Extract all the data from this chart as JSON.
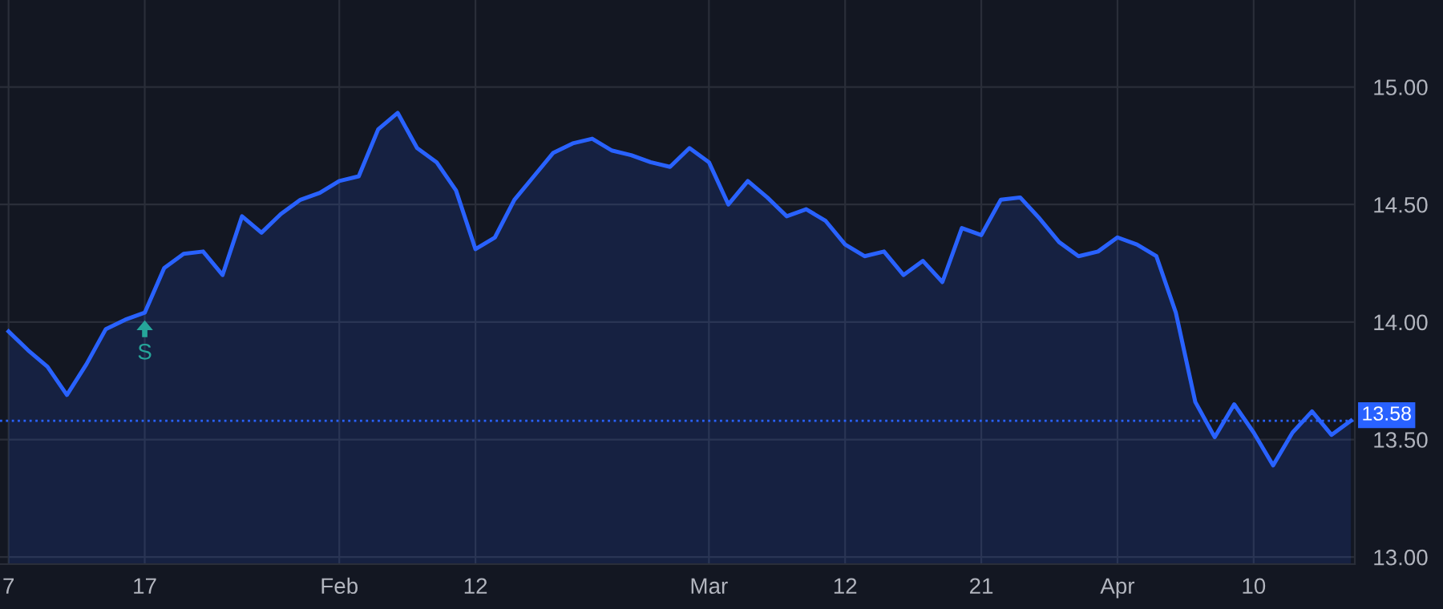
{
  "chart_data": {
    "type": "area",
    "categories": [
      "7",
      null,
      null,
      null,
      null,
      null,
      null,
      "17",
      null,
      null,
      null,
      null,
      null,
      null,
      null,
      null,
      null,
      "Feb",
      null,
      null,
      null,
      null,
      null,
      null,
      "12",
      null,
      null,
      null,
      null,
      null,
      null,
      null,
      null,
      null,
      null,
      null,
      "Mar",
      null,
      null,
      null,
      null,
      null,
      null,
      "12",
      null,
      null,
      null,
      null,
      null,
      null,
      "21",
      null,
      null,
      null,
      null,
      null,
      null,
      "Apr",
      null,
      null,
      null,
      null,
      null,
      null,
      "10",
      null,
      null,
      null,
      null,
      null
    ],
    "series": [
      {
        "color": "#2962ff",
        "values": [
          13.96,
          13.88,
          13.81,
          13.69,
          13.82,
          13.97,
          14.01,
          14.04,
          14.23,
          14.29,
          14.3,
          14.2,
          14.45,
          14.38,
          14.46,
          14.52,
          14.55,
          14.6,
          14.62,
          14.82,
          14.89,
          14.74,
          14.68,
          14.56,
          14.31,
          14.36,
          14.52,
          14.62,
          14.72,
          14.76,
          14.78,
          14.73,
          14.71,
          14.68,
          14.66,
          14.74,
          14.68,
          14.5,
          14.6,
          14.53,
          14.45,
          14.48,
          14.43,
          14.33,
          14.28,
          14.3,
          14.2,
          14.26,
          14.17,
          14.4,
          14.37,
          14.52,
          14.53,
          14.44,
          14.34,
          14.28,
          14.3,
          14.36,
          14.33,
          14.28,
          14.04,
          13.66,
          13.51,
          13.65,
          13.53,
          13.39,
          13.53,
          13.62,
          13.52,
          13.58
        ]
      }
    ],
    "ylim": [
      12.97,
      15.37
    ],
    "yticks": [
      {
        "value": 13,
        "label": "13.00"
      },
      {
        "value": 13.5,
        "label": "13.50"
      },
      {
        "value": 14,
        "label": "14.00"
      },
      {
        "value": 14.5,
        "label": "14.50"
      },
      {
        "value": 15,
        "label": "15.00"
      }
    ],
    "ref_lines": [
      {
        "axis": "y",
        "value": 13.58,
        "label": "13.58",
        "color": "#2962ff",
        "line_style": "dotted"
      }
    ],
    "annotations": [
      {
        "text": "S",
        "x": "17",
        "y": 14.04
      }
    ],
    "grid": true,
    "marker": "none",
    "line_style": "solid"
  }
}
